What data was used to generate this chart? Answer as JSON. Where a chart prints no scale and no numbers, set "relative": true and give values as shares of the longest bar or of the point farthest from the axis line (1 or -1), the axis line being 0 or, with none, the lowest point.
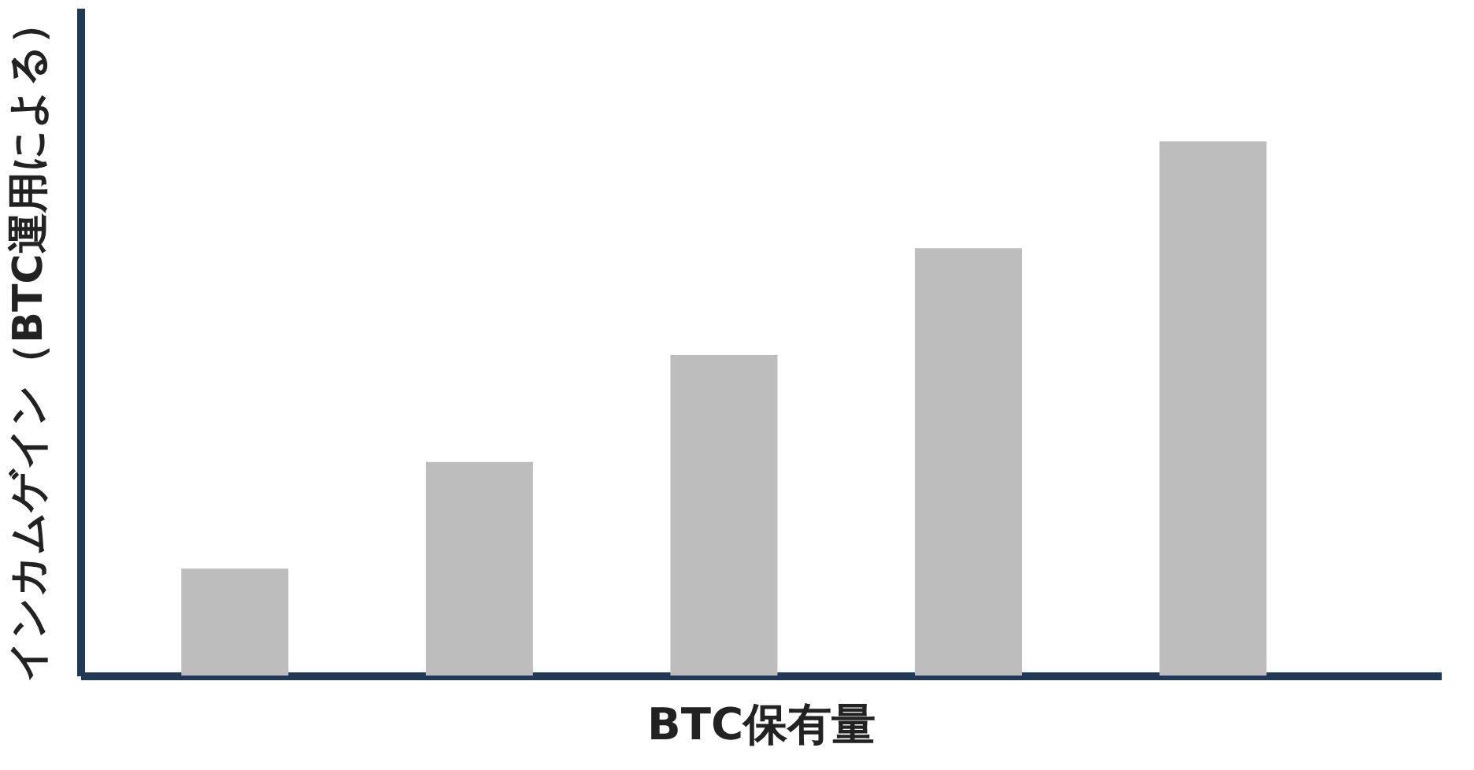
{
  "chart_data": {
    "type": "bar",
    "relative": true,
    "xlabel": "BTC保有量",
    "ylabel": "インカムゲイン（BTC運用による）",
    "categories": [
      null,
      null,
      null,
      null,
      null
    ],
    "values": [
      0.2,
      0.4,
      0.6,
      0.8,
      1.0
    ],
    "color": "#bdbdbd",
    "grid": false
  }
}
